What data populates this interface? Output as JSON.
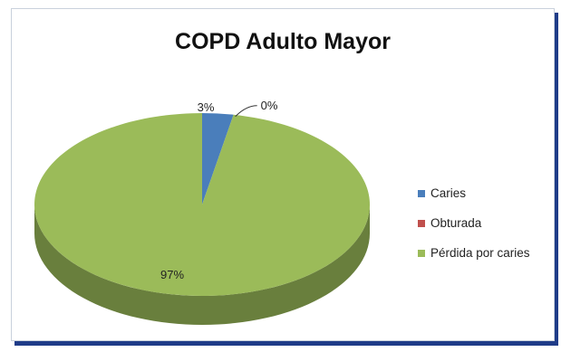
{
  "chart_data": {
    "type": "pie",
    "title": "COPD  Adulto Mayor",
    "categories": [
      "Caries",
      "Obturada",
      "Pérdida por caries"
    ],
    "values": [
      3,
      0,
      97
    ],
    "data_labels": [
      "3%",
      "0%",
      "97%"
    ],
    "colors": [
      "#4a7ebb",
      "#c0504d",
      "#9bbb59"
    ],
    "legend_position": "right",
    "style": "3d"
  }
}
